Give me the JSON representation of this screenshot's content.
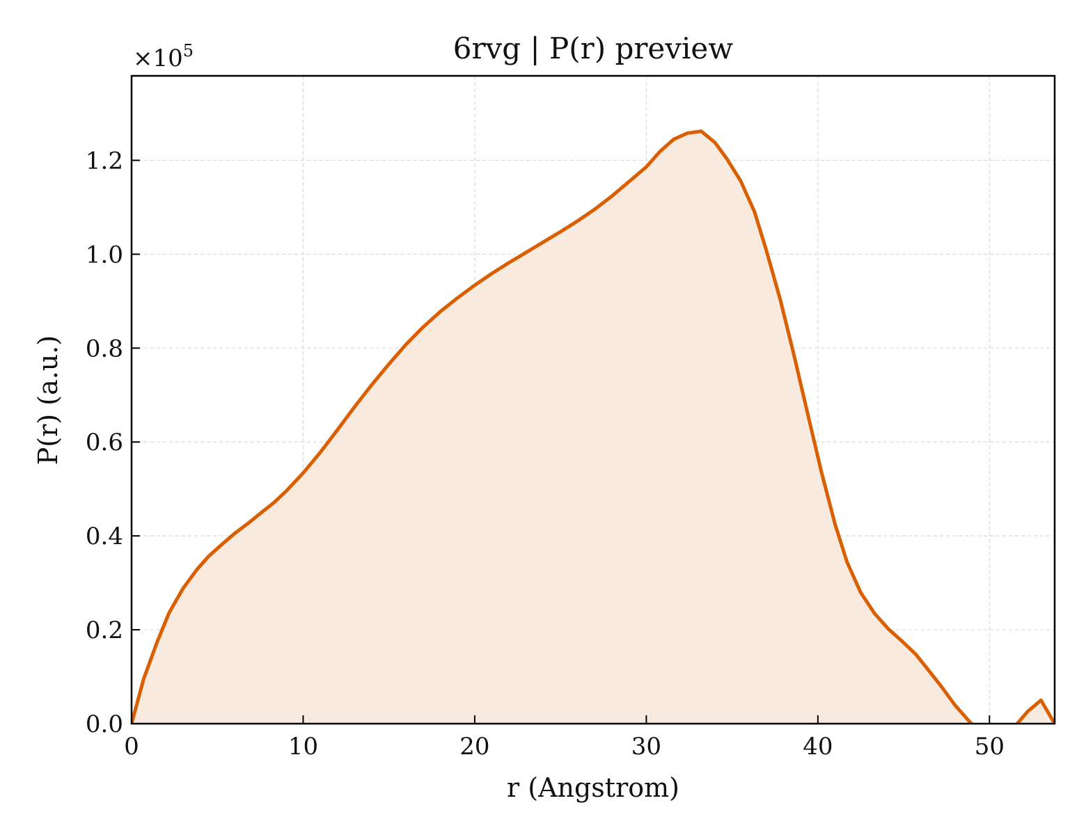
{
  "chart_data": {
    "type": "area",
    "title": "6rvg | P(r) preview",
    "xlabel": "r (Angstrom)",
    "ylabel": "P(r) (a.u.)",
    "y_multiplier": "×10",
    "y_multiplier_exp": "5",
    "xlim": [
      0,
      53.8
    ],
    "ylim": [
      0,
      1.38
    ],
    "x_ticks": [
      0,
      10,
      20,
      30,
      40,
      50
    ],
    "x_tick_labels": [
      "0",
      "10",
      "20",
      "30",
      "40",
      "50"
    ],
    "y_ticks": [
      0,
      0.2,
      0.4,
      0.6,
      0.8,
      1.0,
      1.2
    ],
    "y_tick_labels": [
      "0.0",
      "0.2",
      "0.4",
      "0.6",
      "0.8",
      "1.0",
      "1.2"
    ],
    "grid": true,
    "line_color": "#d95f02",
    "fill_color": "#f9eadf",
    "grid_color": "#d9d9d9",
    "series": [
      {
        "x": [
          0,
          0.7,
          1.5,
          2.2,
          3.0,
          3.8,
          4.5,
          5.3,
          6.0,
          6.8,
          7.5,
          8.3,
          9.0,
          10.0,
          11.0,
          12.0,
          13.0,
          14.0,
          15.0,
          16.0,
          17.0,
          18.0,
          19.0,
          20.0,
          21.0,
          22.0,
          23.0,
          24.0,
          25.0,
          26.0,
          27.0,
          28.0,
          29.0,
          30.0,
          30.8,
          31.6,
          32.4,
          33.2,
          34.0,
          34.7,
          35.5,
          36.3,
          37.0,
          37.8,
          38.6,
          39.4,
          40.2,
          41.0,
          41.7,
          42.5,
          43.3,
          44.1,
          44.9,
          45.7,
          46.4,
          47.2,
          48.0,
          48.8,
          49.5,
          50.1,
          50.8,
          51.5,
          52.2,
          53.0,
          53.8
        ],
        "y": [
          0.0,
          0.095,
          0.175,
          0.237,
          0.288,
          0.328,
          0.357,
          0.383,
          0.405,
          0.427,
          0.448,
          0.471,
          0.495,
          0.534,
          0.578,
          0.626,
          0.675,
          0.722,
          0.766,
          0.808,
          0.845,
          0.878,
          0.907,
          0.934,
          0.959,
          0.982,
          1.004,
          1.026,
          1.048,
          1.071,
          1.096,
          1.124,
          1.155,
          1.186,
          1.219,
          1.245,
          1.258,
          1.262,
          1.238,
          1.203,
          1.156,
          1.091,
          1.008,
          0.904,
          0.786,
          0.661,
          0.537,
          0.425,
          0.344,
          0.279,
          0.235,
          0.202,
          0.176,
          0.148,
          0.116,
          0.079,
          0.039,
          0.006,
          -0.025,
          -0.045,
          -0.032,
          -0.005,
          0.025,
          0.05,
          0.0
        ]
      }
    ]
  }
}
